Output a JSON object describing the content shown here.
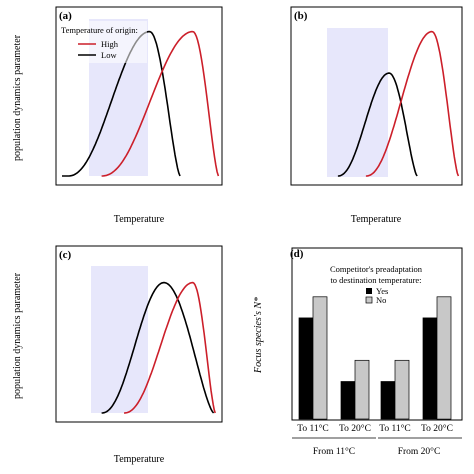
{
  "panels": {
    "a": {
      "label": "(a)",
      "ylabel": "population dynamics parameter",
      "xlabel": "Temperature",
      "legend_title": "Temperature of origin:",
      "legend_high": "High",
      "legend_low": "Low"
    },
    "b": {
      "label": "(b)",
      "xlabel": "Temperature"
    },
    "c": {
      "label": "(c)",
      "ylabel": "population dynamics parameter",
      "xlabel": "Temperature"
    },
    "d": {
      "label": "(d)",
      "ylabel": "Focus species's N*",
      "legend_title_1": "Competitor's preadaptation",
      "legend_title_2": "to destination temperature:",
      "legend_yes": "Yes",
      "legend_no": "No",
      "group1": "From 11°C",
      "group2": "From 20°C"
    }
  },
  "colors": {
    "high": "#cc1f2a",
    "low": "#000000",
    "band": "#e7e7fb",
    "bar_yes": "#000000",
    "bar_no": "#c8c8c8"
  },
  "chart_data": [
    {
      "panel": "a",
      "type": "line",
      "xlabel": "Temperature",
      "ylabel": "population dynamics parameter",
      "x_range": [
        0,
        1
      ],
      "y_range": [
        0,
        1
      ],
      "shaded_band": [
        0.26,
        0.6
      ],
      "series": [
        {
          "name": "Low",
          "color": "#000000",
          "peak_x": 0.56,
          "peak_y": 0.87,
          "start_x": 0.05,
          "end_x": 0.75
        },
        {
          "name": "High",
          "color": "#cc1f2a",
          "peak_x": 0.83,
          "peak_y": 0.87,
          "start_x": 0.26,
          "end_x": 0.99
        }
      ]
    },
    {
      "panel": "b",
      "type": "line",
      "xlabel": "Temperature",
      "x_range": [
        0,
        1
      ],
      "y_range": [
        0,
        1
      ],
      "shaded_band": [
        0.26,
        0.6
      ],
      "series": [
        {
          "name": "Low",
          "color": "#000000",
          "peak_x": 0.57,
          "peak_y": 0.62,
          "start_x": 0.26,
          "end_x": 0.74
        },
        {
          "name": "High",
          "color": "#cc1f2a",
          "peak_x": 0.83,
          "peak_y": 0.87,
          "start_x": 0.43,
          "end_x": 0.99
        }
      ]
    },
    {
      "panel": "c",
      "type": "line",
      "xlabel": "Temperature",
      "ylabel": "population dynamics parameter",
      "x_range": [
        0,
        1
      ],
      "y_range": [
        0,
        1
      ],
      "shaded_band": [
        0.26,
        0.6
      ],
      "series": [
        {
          "name": "Low",
          "color": "#000000",
          "peak_x": 0.65,
          "peak_y": 0.8,
          "start_x": 0.26,
          "end_x": 0.96
        },
        {
          "name": "High",
          "color": "#cc1f2a",
          "peak_x": 0.83,
          "peak_y": 0.8,
          "start_x": 0.4,
          "end_x": 0.97
        }
      ]
    },
    {
      "panel": "d",
      "type": "bar",
      "ylabel": "Focus species's N*",
      "y_range": [
        0,
        1
      ],
      "categories": [
        "To 11°C",
        "To 20°C",
        "To 11°C",
        "To 20°C"
      ],
      "groups": [
        "From 11°C",
        "From 20°C"
      ],
      "series": [
        {
          "name": "Yes",
          "color": "#000000",
          "values": [
            0.62,
            0.23,
            0.23,
            0.62
          ]
        },
        {
          "name": "No",
          "color": "#c8c8c8",
          "values": [
            0.75,
            0.36,
            0.36,
            0.75
          ]
        }
      ]
    }
  ]
}
